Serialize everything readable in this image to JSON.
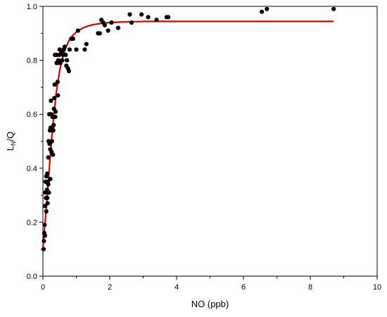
{
  "chart_data": {
    "type": "scatter",
    "title": "",
    "xlabel": "NO (ppb)",
    "ylabel": {
      "main": "L",
      "sub": "N",
      "rest": "/Q"
    },
    "xlim": [
      0,
      10
    ],
    "ylim": [
      0.0,
      1.0
    ],
    "xticks": [
      0,
      2,
      4,
      6,
      8,
      10
    ],
    "yticks": [
      0.0,
      0.2,
      0.4,
      0.6,
      0.8,
      1.0
    ],
    "xtick_labels": [
      "0",
      "2",
      "4",
      "6",
      "8",
      "10"
    ],
    "ytick_labels": [
      "0.0",
      "0.2",
      "0.4",
      "0.6",
      "0.8",
      "1.0"
    ],
    "grid": false,
    "legend": "none",
    "colors": {
      "points": "#000000",
      "fit": "#e00000"
    },
    "series": [
      {
        "type": "scatter",
        "x": [
          0.02,
          0.03,
          0.04,
          0.05,
          0.06,
          0.06,
          0.07,
          0.08,
          0.09,
          0.1,
          0.1,
          0.11,
          0.12,
          0.13,
          0.13,
          0.14,
          0.15,
          0.16,
          0.16,
          0.17,
          0.18,
          0.19,
          0.2,
          0.21,
          0.22,
          0.22,
          0.23,
          0.24,
          0.25,
          0.26,
          0.27,
          0.28,
          0.29,
          0.3,
          0.31,
          0.32,
          0.33,
          0.34,
          0.35,
          0.36,
          0.37,
          0.38,
          0.4,
          0.41,
          0.42,
          0.44,
          0.45,
          0.46,
          0.48,
          0.5,
          0.52,
          0.55,
          0.58,
          0.6,
          0.62,
          0.65,
          0.68,
          0.7,
          0.72,
          0.75,
          0.78,
          0.8,
          0.85,
          0.9,
          1.0,
          1.05,
          1.25,
          1.3,
          1.65,
          1.7,
          1.75,
          1.8,
          1.85,
          1.95,
          2.05,
          2.25,
          2.6,
          2.65,
          2.95,
          3.15,
          3.4,
          3.7,
          3.75,
          6.55,
          6.7,
          8.7
        ],
        "y": [
          0.1,
          0.13,
          0.16,
          0.19,
          0.15,
          0.26,
          0.31,
          0.35,
          0.29,
          0.37,
          0.24,
          0.29,
          0.32,
          0.29,
          0.38,
          0.27,
          0.35,
          0.34,
          0.44,
          0.5,
          0.31,
          0.6,
          0.49,
          0.54,
          0.36,
          0.47,
          0.55,
          0.65,
          0.6,
          0.46,
          0.5,
          0.55,
          0.59,
          0.45,
          0.54,
          0.56,
          0.62,
          0.66,
          0.71,
          0.82,
          0.59,
          0.61,
          0.82,
          0.79,
          0.79,
          0.72,
          0.67,
          0.8,
          0.82,
          0.84,
          0.79,
          0.83,
          0.8,
          0.82,
          0.84,
          0.85,
          0.82,
          0.78,
          0.8,
          0.77,
          0.76,
          0.84,
          0.88,
          0.88,
          0.84,
          0.91,
          0.84,
          0.86,
          0.9,
          0.9,
          0.95,
          0.94,
          0.93,
          0.91,
          0.94,
          0.92,
          0.97,
          0.94,
          0.97,
          0.96,
          0.95,
          0.96,
          0.96,
          0.98,
          0.99,
          0.99
        ]
      },
      {
        "type": "line",
        "x": [
          0.0,
          0.1,
          0.2,
          0.3,
          0.4,
          0.5,
          0.6,
          0.7,
          0.8,
          0.9,
          1.0,
          1.1,
          1.2,
          1.3,
          1.4,
          1.5,
          1.6,
          1.7,
          1.8,
          1.9,
          2.0,
          2.2,
          2.4,
          2.6,
          2.8,
          3.0,
          3.5,
          4.0,
          5.0,
          6.0,
          7.0,
          8.0,
          8.7
        ],
        "y": [
          0.105,
          0.251,
          0.416,
          0.566,
          0.681,
          0.762,
          0.816,
          0.852,
          0.877,
          0.893,
          0.905,
          0.913,
          0.92,
          0.925,
          0.929,
          0.932,
          0.934,
          0.936,
          0.938,
          0.939,
          0.94,
          0.941,
          0.942,
          0.943,
          0.943,
          0.944,
          0.944,
          0.944,
          0.944,
          0.944,
          0.944,
          0.944,
          0.944
        ]
      }
    ]
  }
}
